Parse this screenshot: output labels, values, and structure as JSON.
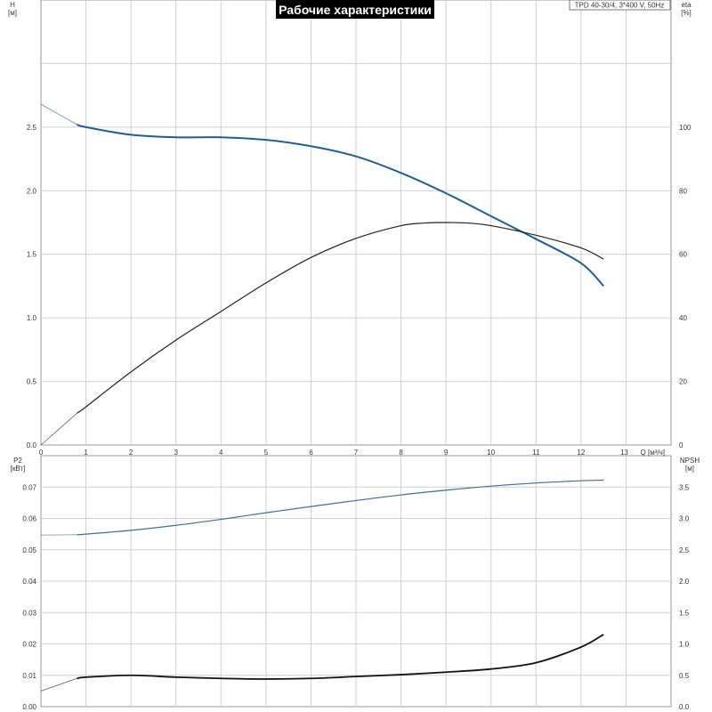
{
  "chart_data": [
    {
      "type": "line",
      "title": "Рабочие характеристики",
      "info": "TPD 40-30/4, 3*400 V, 50Hz",
      "xlabel": "Q [м³/ч]",
      "x_tick_labels": [
        "0",
        "1",
        "2",
        "3",
        "4",
        "5",
        "6",
        "7",
        "8",
        "9",
        "10",
        "11",
        "12",
        "13"
      ],
      "xlim": [
        0,
        14
      ],
      "left_axis": {
        "label_line1": "H",
        "label_line2": "[м]",
        "range": [
          0,
          3.5
        ],
        "tick_labels": [
          "0.0",
          "0.5",
          "1.0",
          "1.5",
          "2.0",
          "2.5"
        ],
        "ticks": [
          0,
          0.5,
          1.0,
          1.5,
          2.0,
          2.5
        ]
      },
      "right_axis": {
        "label_line1": "eta",
        "label_line2": "[%]",
        "range": [
          0,
          140
        ],
        "tick_labels": [
          "0",
          "20",
          "40",
          "60",
          "80",
          "100"
        ],
        "ticks": [
          0,
          20,
          40,
          60,
          80,
          100
        ]
      },
      "grid": true,
      "series": [
        {
          "axis": "left",
          "color": "#1f5d99",
          "x": [
            0,
            0.8,
            1,
            2,
            3,
            4,
            5,
            6,
            7,
            8,
            9,
            10,
            10.5,
            11,
            12,
            12.5
          ],
          "y": [
            2.68,
            2.52,
            2.5,
            2.44,
            2.42,
            2.42,
            2.4,
            2.35,
            2.27,
            2.14,
            1.98,
            1.8,
            1.71,
            1.62,
            1.43,
            1.25
          ]
        },
        {
          "axis": "right",
          "color": "#222222",
          "x": [
            0,
            0.8,
            1,
            2,
            3,
            4,
            5,
            6,
            7,
            8,
            8.5,
            9,
            9.5,
            10,
            11,
            12,
            12.5
          ],
          "y": [
            0,
            10,
            12,
            23,
            33,
            42,
            51,
            59,
            65,
            69,
            69.8,
            70,
            69.8,
            69,
            66,
            62,
            58.5
          ]
        }
      ]
    },
    {
      "type": "line",
      "xlim": [
        0,
        14
      ],
      "left_axis": {
        "label_line1": "P2",
        "label_line2": "[кВт]",
        "range": [
          0,
          0.08
        ],
        "tick_labels": [
          "0.00",
          "0.01",
          "0.02",
          "0.03",
          "0.04",
          "0.05",
          "0.06",
          "0.07"
        ],
        "ticks": [
          0,
          0.01,
          0.02,
          0.03,
          0.04,
          0.05,
          0.06,
          0.07
        ]
      },
      "right_axis": {
        "label_line1": "NPSH",
        "label_line2": "[м]",
        "range": [
          0,
          4
        ],
        "tick_labels": [
          "0.0",
          "0.5",
          "1.0",
          "1.5",
          "2.0",
          "2.5",
          "3.0",
          "3.5"
        ],
        "ticks": [
          0,
          0.5,
          1.0,
          1.5,
          2.0,
          2.5,
          3.0,
          3.5
        ]
      },
      "grid": true,
      "series": [
        {
          "axis": "left",
          "color": "#3c6e9c",
          "x": [
            0,
            0.8,
            1,
            2,
            3,
            4,
            5,
            6,
            7,
            8,
            9,
            10,
            11,
            12,
            12.5
          ],
          "y": [
            0.0547,
            0.0548,
            0.055,
            0.0562,
            0.0578,
            0.0597,
            0.0618,
            0.0638,
            0.0657,
            0.0675,
            0.069,
            0.0703,
            0.0713,
            0.072,
            0.0722
          ]
        },
        {
          "axis": "right",
          "color": "#111111",
          "x": [
            0,
            0.8,
            1,
            2,
            3,
            4,
            5,
            6,
            7,
            8,
            9,
            10,
            11,
            12,
            12.5
          ],
          "y": [
            0.25,
            0.45,
            0.47,
            0.5,
            0.47,
            0.45,
            0.44,
            0.45,
            0.48,
            0.51,
            0.55,
            0.6,
            0.7,
            0.95,
            1.15
          ]
        }
      ]
    }
  ]
}
